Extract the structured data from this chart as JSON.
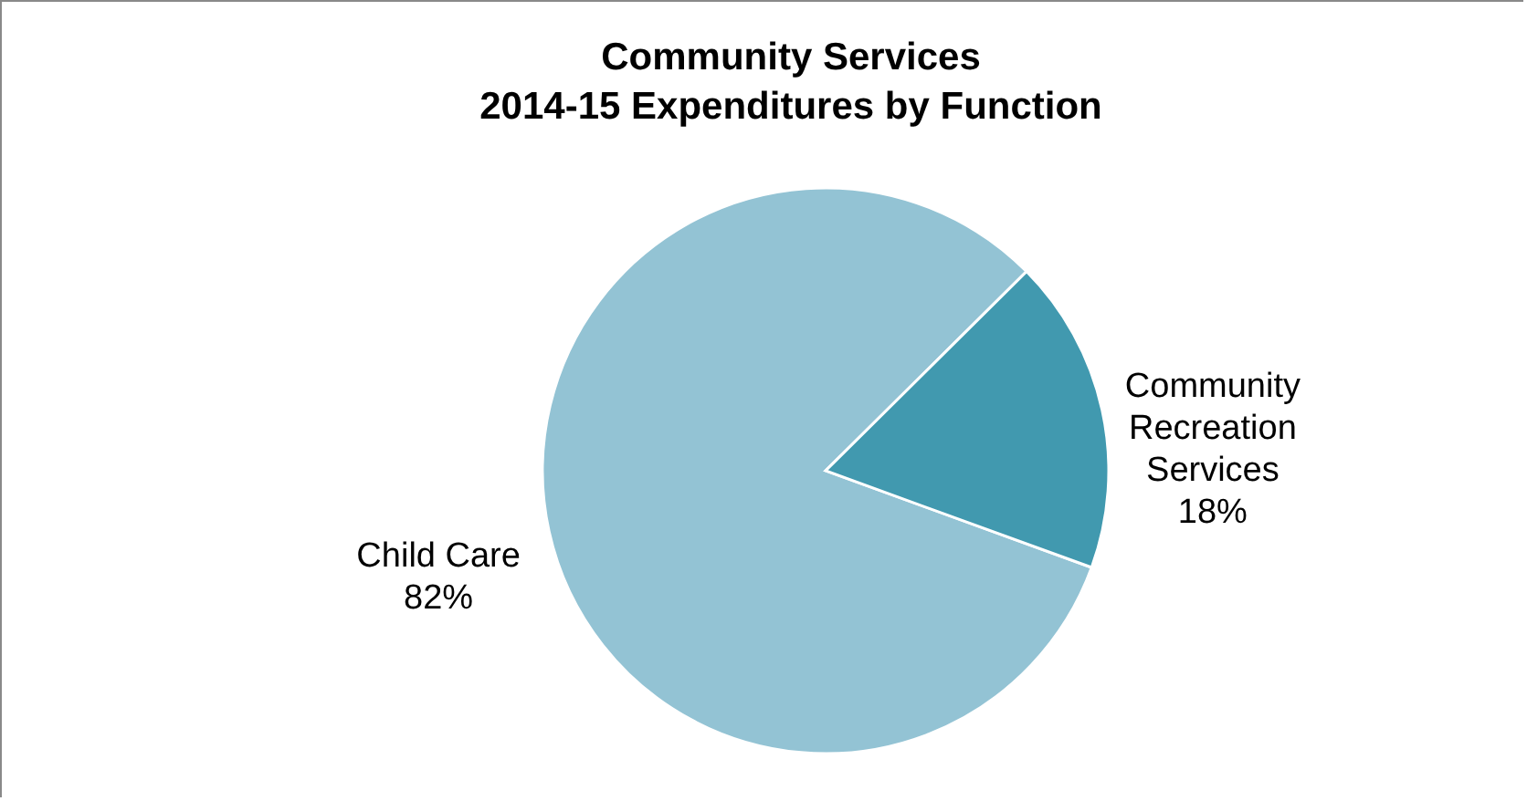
{
  "chart_data": {
    "type": "pie",
    "title": "Community Services",
    "subtitle": "2014-15 Expenditures by Function",
    "categories": [
      "Child Care",
      "Community Recreation Services"
    ],
    "values": [
      82,
      18
    ],
    "value_labels": [
      "82%",
      "18%"
    ],
    "colors": [
      "#93c3d4",
      "#4199af"
    ]
  }
}
